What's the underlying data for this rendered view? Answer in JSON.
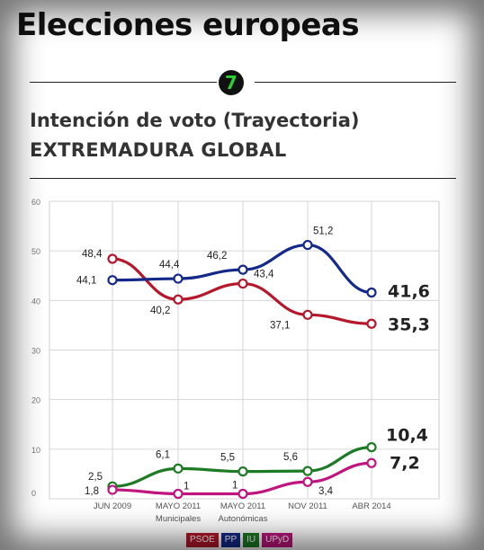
{
  "header": {
    "title": "Elecciones europeas",
    "badge": "7"
  },
  "chart_data": {
    "type": "line",
    "title": "Intención de voto (Trayectoria)",
    "subtitle": "EXTREMADURA GLOBAL",
    "ylim": [
      0,
      60
    ],
    "yticks": [
      "0",
      "10",
      "20",
      "30",
      "40",
      "50",
      "60"
    ],
    "grid": true,
    "legend_position": "bottom",
    "categories": [
      {
        "label": "JUN 2009",
        "sublabel": ""
      },
      {
        "label": "MAYO 2011",
        "sublabel": "Municipales"
      },
      {
        "label": "MAYO 2011",
        "sublabel": "Autonómicas"
      },
      {
        "label": "NOV 2011",
        "sublabel": ""
      },
      {
        "label": "ABR 2014",
        "sublabel": ""
      }
    ],
    "series": [
      {
        "name": "PSOE",
        "color": "#b5172b",
        "values": [
          48.4,
          40.2,
          43.4,
          37.1,
          35.3
        ],
        "labels": [
          "48,4",
          "40,2",
          "43,4",
          "37,1",
          "35,3"
        ]
      },
      {
        "name": "PP",
        "color": "#15298a",
        "values": [
          44.1,
          44.4,
          46.2,
          51.2,
          41.6
        ],
        "labels": [
          "44,1",
          "44,4",
          "46,2",
          "51,2",
          "41,6"
        ]
      },
      {
        "name": "IU",
        "color": "#1e7b25",
        "values": [
          2.5,
          6.1,
          5.5,
          5.6,
          10.4
        ],
        "labels": [
          "2,5",
          "6,1",
          "5,5",
          "5,6",
          "10,4"
        ]
      },
      {
        "name": "UPyD",
        "color": "#c0157f",
        "values": [
          1.8,
          1,
          1,
          3.4,
          7.2
        ],
        "labels": [
          "1,8",
          "1",
          "1",
          "3,4",
          "7,2"
        ]
      }
    ]
  }
}
